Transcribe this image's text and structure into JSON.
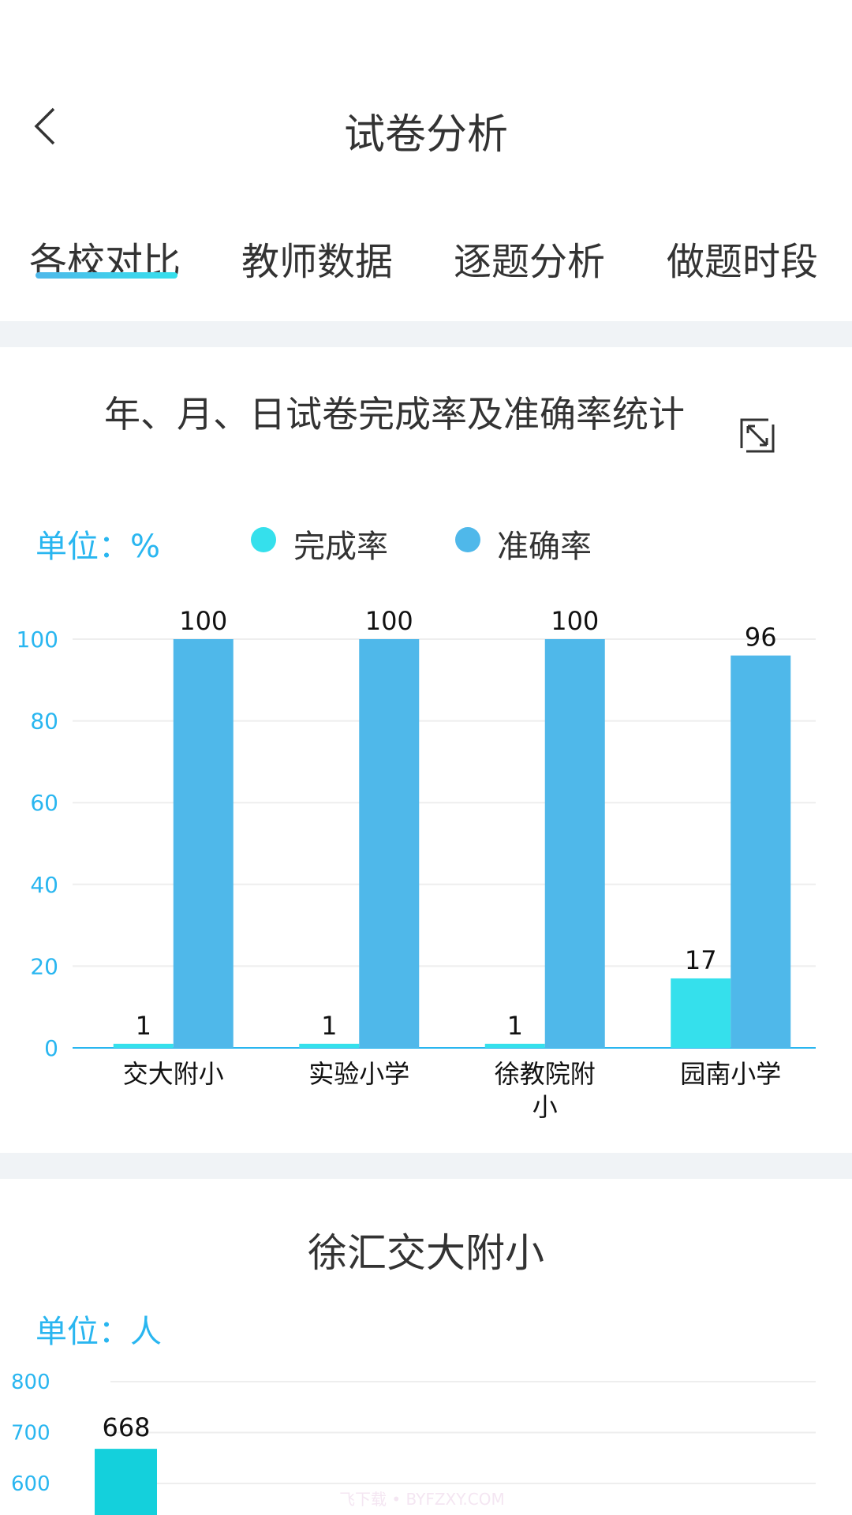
{
  "header": {
    "title": "试卷分析",
    "back_icon": "chevron-left-icon"
  },
  "tabs": [
    {
      "label": "各校对比",
      "active": true
    },
    {
      "label": "教师数据",
      "active": false
    },
    {
      "label": "逐题分析",
      "active": false
    },
    {
      "label": "做题时段",
      "active": false
    }
  ],
  "colors": {
    "accent": "#29b6f0",
    "completion": "#35e0ec",
    "accuracy": "#4fb8ea",
    "students": "#14d0dc"
  },
  "chart_data": [
    {
      "type": "bar",
      "title": "年、月、日试卷完成率及准确率统计",
      "unit_label": "单位：%",
      "categories": [
        "交大附小",
        "实验小学",
        "徐教院附小",
        "园南小学"
      ],
      "series": [
        {
          "name": "完成率",
          "values": [
            1,
            1,
            1,
            17
          ]
        },
        {
          "name": "准确率",
          "values": [
            100,
            100,
            100,
            96
          ]
        }
      ],
      "ylim": [
        0,
        100
      ],
      "yticks": [
        0,
        20,
        40,
        60,
        80,
        100
      ],
      "grid": true,
      "legend": "top"
    },
    {
      "type": "bar",
      "title": "徐汇交大附小",
      "unit_label": "单位：人",
      "visible_yticks": [
        600,
        700,
        800
      ],
      "series": [
        {
          "values": [
            668
          ]
        }
      ],
      "grid": true
    }
  ],
  "watermark": "飞下载 • BYFZXY.COM"
}
